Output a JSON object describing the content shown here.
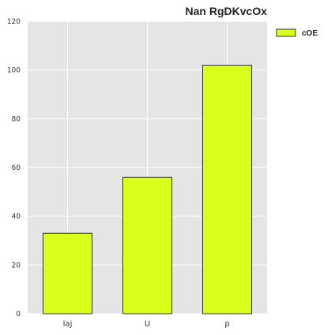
{
  "chart_data": {
    "type": "bar",
    "title": "Nan RgDKvcOx",
    "xlabel": "",
    "ylabel": "",
    "categories": [
      "laj",
      "U",
      "p"
    ],
    "series": [
      {
        "name": "cOE",
        "values": [
          33,
          56,
          102
        ],
        "color": "#d9ff1a"
      }
    ],
    "ylim": [
      0,
      120
    ],
    "yticks": [
      0,
      20,
      40,
      60,
      80,
      100,
      120
    ],
    "grid": true,
    "legend": "top-right",
    "plot_background": "#e5e5e5",
    "bar_edge_color": "#333333"
  }
}
